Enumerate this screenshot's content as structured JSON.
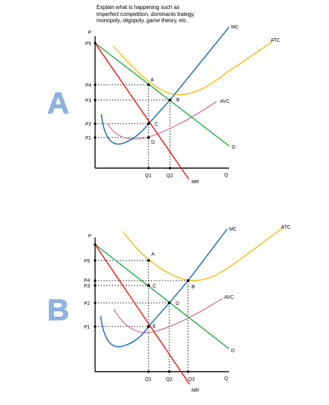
{
  "question": [
    "Explain what is happening such as",
    "imperfect competition, dominants trategy,",
    "monopoly, oligopoly, game theory, etc."
  ],
  "diagrams": {
    "A": {
      "panel_label": "A",
      "y_axis": "P",
      "x_axis": "Q",
      "curves": {
        "mc": "MC",
        "atc": "ATC",
        "avc": "AVC",
        "d": "D",
        "mr": "MR"
      },
      "price_labels": [
        "P5",
        "P4",
        "P3",
        "P2",
        "P1"
      ],
      "quantity_labels": [
        "Q1",
        "Q2"
      ],
      "points": [
        "A",
        "B",
        "C",
        "D"
      ]
    },
    "B": {
      "panel_label": "B",
      "y_axis": "P",
      "x_axis": "Q",
      "curves": {
        "mc": "MC",
        "atc": "ATC",
        "avc": "AVC",
        "d": "D",
        "mr": "MR"
      },
      "price_labels": [
        "P5",
        "P4",
        "P3",
        "P2",
        "P1"
      ],
      "quantity_labels": [
        "Q1",
        "Q2",
        "Q3"
      ],
      "points": [
        "A",
        "B",
        "C",
        "D",
        "E"
      ]
    }
  },
  "colors": {
    "mc": "#1f6fc0",
    "atc": "#f2c21b",
    "avc": "#c77aa4",
    "demand": "#2eb34f",
    "mr": "#e8231c",
    "panel_letter": "#8fb4e3"
  }
}
